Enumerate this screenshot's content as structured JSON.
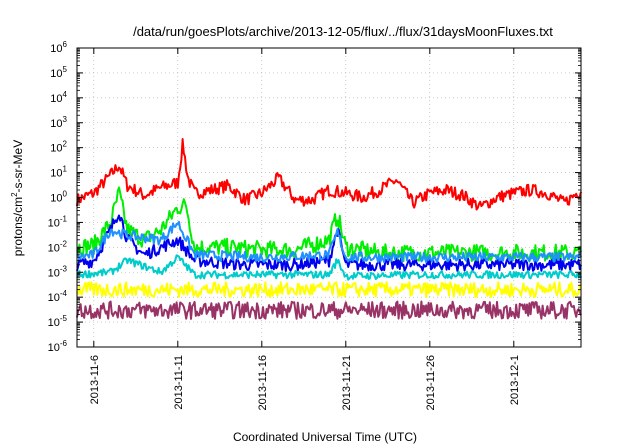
{
  "chart_data": {
    "type": "line",
    "title": "/data/run/goesPlots/archive/2013-12-05/flux/../flux/31daysMoonFluxes.txt",
    "xlabel": "Coordinated Universal Time (UTC)",
    "ylabel_parts": [
      "protons/cm",
      "2",
      "-s-sr-MeV"
    ],
    "y_scale": "log",
    "ylim": [
      1e-06,
      1000000.0
    ],
    "y_ticks": [
      {
        "base": "10",
        "exp": "-6"
      },
      {
        "base": "10",
        "exp": "-5"
      },
      {
        "base": "10",
        "exp": "-4"
      },
      {
        "base": "10",
        "exp": "-3"
      },
      {
        "base": "10",
        "exp": "-2"
      },
      {
        "base": "10",
        "exp": "-1"
      },
      {
        "base": "10",
        "exp": "0"
      },
      {
        "base": "10",
        "exp": "1"
      },
      {
        "base": "10",
        "exp": "2"
      },
      {
        "base": "10",
        "exp": "3"
      },
      {
        "base": "10",
        "exp": "4"
      },
      {
        "base": "10",
        "exp": "5"
      },
      {
        "base": "10",
        "exp": "6"
      }
    ],
    "x_range": [
      "2013-11-05",
      "2013-12-05"
    ],
    "x_ticks": [
      "2013-11-6",
      "2013-11-11",
      "2013-11-16",
      "2013-11-21",
      "2013-11-26",
      "2013-12-1"
    ],
    "grid": true,
    "legend": "none",
    "series": [
      {
        "color": "#ff0000",
        "values": [
          [
            "2013-11-05",
            0.8
          ],
          [
            "2013-11-06",
            1.5
          ],
          [
            "2013-11-07",
            8
          ],
          [
            "2013-11-07.5",
            20
          ],
          [
            "2013-11-08",
            3
          ],
          [
            "2013-11-09",
            1.2
          ],
          [
            "2013-11-10",
            2.5
          ],
          [
            "2013-11-11",
            4
          ],
          [
            "2013-11-11.3",
            150
          ],
          [
            "2013-11-11.6",
            6
          ],
          [
            "2013-11-12",
            1.5
          ],
          [
            "2013-11-13",
            2
          ],
          [
            "2013-11-14",
            3
          ],
          [
            "2013-11-15",
            0.8
          ],
          [
            "2013-11-16",
            1.5
          ],
          [
            "2013-11-17",
            6
          ],
          [
            "2013-11-18",
            0.8
          ],
          [
            "2013-11-19",
            0.8
          ],
          [
            "2013-11-20",
            2
          ],
          [
            "2013-11-21",
            1.5
          ],
          [
            "2013-11-22",
            1
          ],
          [
            "2013-11-23",
            2
          ],
          [
            "2013-11-24",
            5
          ],
          [
            "2013-11-25",
            0.6
          ],
          [
            "2013-11-26",
            1.5
          ],
          [
            "2013-11-27",
            2
          ],
          [
            "2013-11-28",
            1.2
          ],
          [
            "2013-11-29",
            0.4
          ],
          [
            "2013-11-30",
            1
          ],
          [
            "2013-12-01",
            1.5
          ],
          [
            "2013-12-02",
            2
          ],
          [
            "2013-12-03",
            1.5
          ],
          [
            "2013-12-04",
            0.6
          ],
          [
            "2013-12-05",
            2
          ]
        ]
      },
      {
        "color": "#00ee00",
        "values": [
          [
            "2013-11-05",
            0.01
          ],
          [
            "2013-11-06",
            0.012
          ],
          [
            "2013-11-07",
            0.1
          ],
          [
            "2013-11-07.5",
            1.5
          ],
          [
            "2013-11-08",
            0.05
          ],
          [
            "2013-11-09",
            0.02
          ],
          [
            "2013-11-10",
            0.05
          ],
          [
            "2013-11-11",
            0.4
          ],
          [
            "2013-11-11.5",
            0.5
          ],
          [
            "2013-11-12",
            0.01
          ],
          [
            "2013-11-14",
            0.01
          ],
          [
            "2013-11-16",
            0.008
          ],
          [
            "2013-11-18",
            0.008
          ],
          [
            "2013-11-20",
            0.02
          ],
          [
            "2013-11-20.5",
            0.2
          ],
          [
            "2013-11-21",
            0.01
          ],
          [
            "2013-11-23",
            0.006
          ],
          [
            "2013-11-26",
            0.006
          ],
          [
            "2013-11-29",
            0.006
          ],
          [
            "2013-12-02",
            0.006
          ],
          [
            "2013-12-05",
            0.006
          ]
        ]
      },
      {
        "color": "#0000ee",
        "values": [
          [
            "2013-11-05",
            0.002
          ],
          [
            "2013-11-06",
            0.003
          ],
          [
            "2013-11-07",
            0.05
          ],
          [
            "2013-11-07.5",
            0.3
          ],
          [
            "2013-11-08",
            0.02
          ],
          [
            "2013-11-09",
            0.005
          ],
          [
            "2013-11-10",
            0.01
          ],
          [
            "2013-11-11",
            0.02
          ],
          [
            "2013-11-12",
            0.003
          ],
          [
            "2013-11-15",
            0.002
          ],
          [
            "2013-11-18",
            0.002
          ],
          [
            "2013-11-20",
            0.003
          ],
          [
            "2013-11-20.5",
            0.05
          ],
          [
            "2013-11-21",
            0.002
          ],
          [
            "2013-11-25",
            0.002
          ],
          [
            "2013-11-30",
            0.002
          ],
          [
            "2013-12-05",
            0.002
          ]
        ]
      },
      {
        "color": "#1e90ff",
        "values": [
          [
            "2013-11-05",
            0.004
          ],
          [
            "2013-11-06",
            0.005
          ],
          [
            "2013-11-07",
            0.05
          ],
          [
            "2013-11-08",
            0.03
          ],
          [
            "2013-11-10",
            0.02
          ],
          [
            "2013-11-11",
            0.1
          ],
          [
            "2013-11-12",
            0.005
          ],
          [
            "2013-11-16",
            0.004
          ],
          [
            "2013-11-20",
            0.005
          ],
          [
            "2013-11-20.5",
            0.04
          ],
          [
            "2013-11-21",
            0.004
          ],
          [
            "2013-11-26",
            0.004
          ],
          [
            "2013-12-01",
            0.004
          ],
          [
            "2013-12-05",
            0.004
          ]
        ]
      },
      {
        "color": "#00cccc",
        "values": [
          [
            "2013-11-05",
            0.0008
          ],
          [
            "2013-11-07",
            0.001
          ],
          [
            "2013-11-08",
            0.003
          ],
          [
            "2013-11-10",
            0.001
          ],
          [
            "2013-11-11",
            0.004
          ],
          [
            "2013-11-12",
            0.0008
          ],
          [
            "2013-11-16",
            0.0008
          ],
          [
            "2013-11-20",
            0.0008
          ],
          [
            "2013-11-20.5",
            0.003
          ],
          [
            "2013-11-21",
            0.0007
          ],
          [
            "2013-11-26",
            0.0008
          ],
          [
            "2013-12-05",
            0.0008
          ]
        ]
      },
      {
        "color": "#ffff00",
        "values": [
          [
            "2013-11-05",
            0.0002
          ],
          [
            "2013-11-10",
            0.0002
          ],
          [
            "2013-11-15",
            0.0002
          ],
          [
            "2013-11-20",
            0.0002
          ],
          [
            "2013-11-25",
            0.0002
          ],
          [
            "2013-11-30",
            0.0002
          ],
          [
            "2013-12-05",
            0.0002
          ]
        ]
      },
      {
        "color": "#993366",
        "values": [
          [
            "2013-11-05",
            3e-05
          ],
          [
            "2013-11-10",
            3e-05
          ],
          [
            "2013-11-15",
            3e-05
          ],
          [
            "2013-11-20",
            3e-05
          ],
          [
            "2013-11-25",
            3e-05
          ],
          [
            "2013-11-30",
            3e-05
          ],
          [
            "2013-12-05",
            3e-05
          ]
        ]
      }
    ]
  }
}
